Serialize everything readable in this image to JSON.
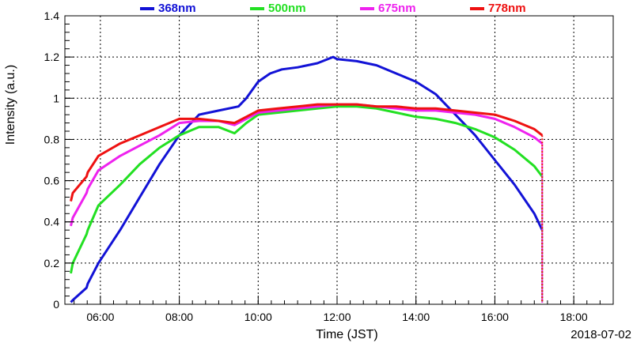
{
  "chart_data": {
    "type": "line",
    "xlabel": "Time (JST)",
    "ylabel": "Intensity (a.u.)",
    "date": "2018-07-02",
    "xlim": [
      5.1,
      19.0
    ],
    "ylim": [
      0,
      1.4
    ],
    "x_ticks": [
      6,
      8,
      10,
      12,
      14,
      16,
      18
    ],
    "x_tick_labels": [
      "06:00",
      "08:00",
      "10:00",
      "12:00",
      "14:00",
      "16:00",
      "18:00"
    ],
    "y_ticks": [
      0,
      0.2,
      0.4,
      0.6,
      0.8,
      1,
      1.2,
      1.4
    ],
    "y_tick_labels": [
      "0",
      "0.2",
      "0.4",
      "0.6",
      "0.8",
      "1",
      "1.2",
      "1.4"
    ],
    "grid": true,
    "legend_position": "top",
    "series": [
      {
        "name": "368nm",
        "color": "#1212d6",
        "x": [
          5.25,
          5.3,
          5.65,
          5.68,
          5.95,
          6.5,
          7.0,
          7.5,
          8.0,
          8.5,
          9.0,
          9.5,
          9.7,
          10.0,
          10.3,
          10.6,
          11.0,
          11.5,
          11.9,
          12.0,
          12.5,
          13.0,
          13.5,
          14.0,
          14.5,
          15.0,
          15.5,
          16.0,
          16.5,
          17.0,
          17.2
        ],
        "y": [
          0.01,
          0.02,
          0.08,
          0.1,
          0.2,
          0.36,
          0.52,
          0.68,
          0.82,
          0.92,
          0.94,
          0.96,
          1.0,
          1.08,
          1.12,
          1.14,
          1.15,
          1.17,
          1.2,
          1.19,
          1.18,
          1.16,
          1.12,
          1.08,
          1.02,
          0.92,
          0.82,
          0.7,
          0.58,
          0.44,
          0.36
        ]
      },
      {
        "name": "500nm",
        "color": "#22e022",
        "x": [
          5.25,
          5.3,
          5.65,
          5.68,
          5.95,
          6.5,
          7.0,
          7.5,
          8.0,
          8.5,
          9.0,
          9.4,
          9.7,
          10.0,
          10.5,
          11.0,
          11.5,
          12.0,
          12.5,
          13.0,
          13.5,
          14.0,
          14.5,
          15.0,
          15.5,
          16.0,
          16.5,
          17.0,
          17.2
        ],
        "y": [
          0.15,
          0.2,
          0.34,
          0.36,
          0.48,
          0.58,
          0.68,
          0.76,
          0.82,
          0.86,
          0.86,
          0.83,
          0.88,
          0.92,
          0.93,
          0.94,
          0.95,
          0.96,
          0.96,
          0.95,
          0.93,
          0.91,
          0.9,
          0.88,
          0.85,
          0.81,
          0.75,
          0.67,
          0.62
        ]
      },
      {
        "name": "675nm",
        "color": "#ee22ee",
        "x": [
          5.25,
          5.3,
          5.65,
          5.68,
          5.95,
          6.5,
          7.0,
          7.5,
          8.0,
          8.5,
          9.0,
          9.4,
          9.7,
          10.0,
          10.5,
          11.0,
          11.5,
          12.0,
          12.5,
          13.0,
          13.5,
          14.0,
          14.5,
          15.0,
          15.5,
          16.0,
          16.5,
          17.0,
          17.2
        ],
        "y": [
          0.38,
          0.42,
          0.54,
          0.56,
          0.65,
          0.72,
          0.77,
          0.82,
          0.88,
          0.89,
          0.89,
          0.87,
          0.9,
          0.93,
          0.94,
          0.95,
          0.96,
          0.97,
          0.97,
          0.96,
          0.95,
          0.94,
          0.94,
          0.93,
          0.92,
          0.9,
          0.86,
          0.81,
          0.78
        ]
      },
      {
        "name": "778nm",
        "color": "#ee1111",
        "x": [
          5.25,
          5.3,
          5.65,
          5.68,
          5.95,
          6.5,
          7.0,
          7.5,
          8.0,
          8.5,
          9.0,
          9.4,
          9.7,
          10.0,
          10.5,
          11.0,
          11.5,
          12.0,
          12.5,
          13.0,
          13.5,
          14.0,
          14.5,
          15.0,
          15.5,
          16.0,
          16.5,
          17.0,
          17.2
        ],
        "y": [
          0.5,
          0.54,
          0.62,
          0.64,
          0.72,
          0.78,
          0.82,
          0.86,
          0.9,
          0.9,
          0.89,
          0.88,
          0.91,
          0.94,
          0.95,
          0.96,
          0.97,
          0.97,
          0.97,
          0.96,
          0.96,
          0.95,
          0.95,
          0.94,
          0.93,
          0.92,
          0.89,
          0.85,
          0.82
        ]
      }
    ]
  }
}
